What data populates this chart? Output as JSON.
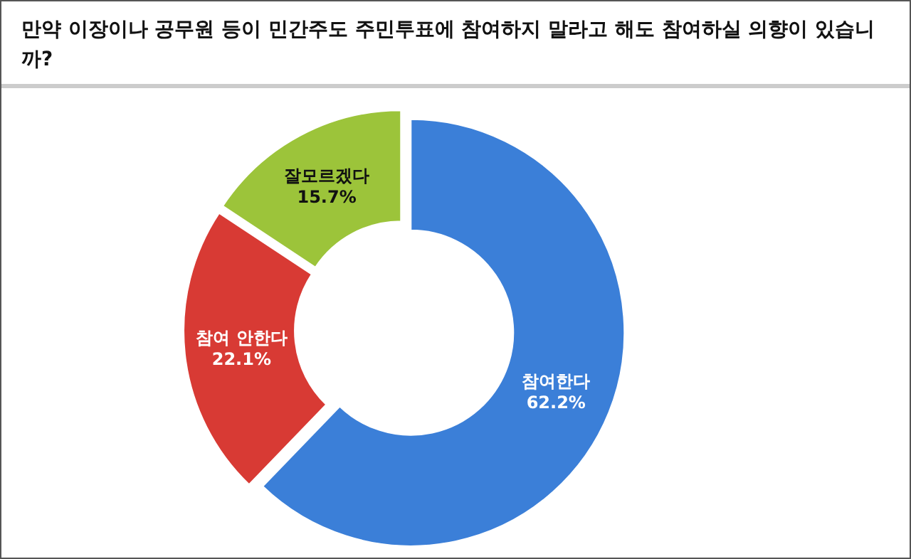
{
  "chart_data": {
    "type": "donut",
    "title": "만약 이장이나 공무원 등이 민간주도 주민투표에 참여하지 말라고 해도 참여하실 의향이 있습니까?",
    "categories": [
      "참여한다",
      "참여 안한다",
      "잘모르겠다"
    ],
    "values": [
      62.2,
      22.1,
      15.7
    ],
    "value_labels": [
      "62.2%",
      "22.1%",
      "15.7%"
    ],
    "colors": [
      "#3b7fd8",
      "#d83a34",
      "#9cc43a"
    ],
    "legend": false
  }
}
